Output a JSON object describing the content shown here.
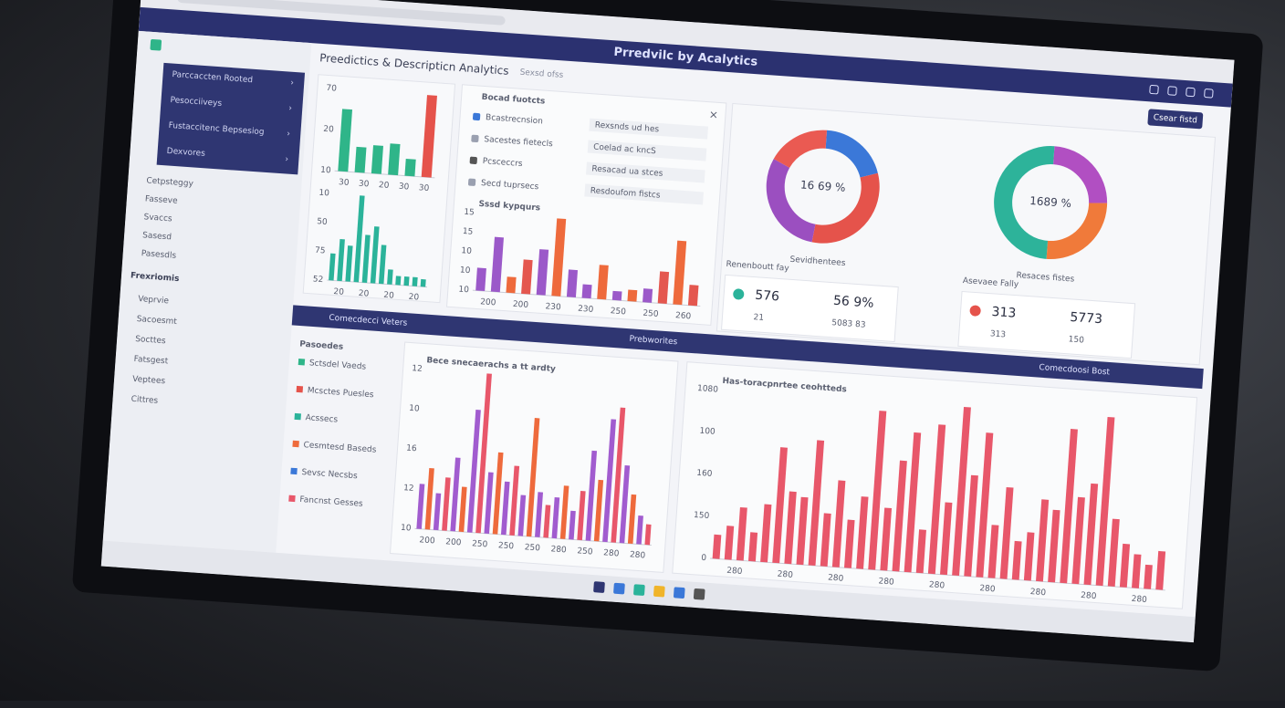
{
  "window": {
    "title": "Prredvilc by Acalytics",
    "header": "Preedictics & Descripticn Analytics",
    "tab": "Sexsd ofss",
    "button": "Csear fistd"
  },
  "sidebar": {
    "menu": [
      "Parccaccten Rooted",
      "Pesocciiveys",
      "Fustaccitenc Bepsesiog",
      "Dexvores"
    ],
    "items": [
      "Cetpsteggy",
      "Fasseve",
      "Svaccs",
      "Sasesd",
      "Pasesdls"
    ],
    "section": "Frexriomis",
    "items2": [
      "Veprvie",
      "Sacoesmt",
      "Socttes",
      "Fatsgest",
      "Veptees",
      "Cittres"
    ]
  },
  "list_panel": {
    "title": "Bocad fuotcts",
    "rows": [
      [
        "Bcastrecnsion",
        "Rexsnds ud hes"
      ],
      [
        "Sacestes fietecls",
        "Coelad ac kncS"
      ],
      [
        "Pcsceccrs",
        "Resacad ua stces"
      ],
      [
        "Secd tuprsecs",
        "Resdoufom fistcs"
      ]
    ]
  },
  "donuts": [
    {
      "label": "16 69 %",
      "caption": "Sevidhentees",
      "values": [
        20,
        32,
        30,
        18
      ],
      "colors": [
        "#3b78d8",
        "#e5534b",
        "#9b4fc0",
        "#ea5a52"
      ]
    },
    {
      "label": "1689 %",
      "caption": "Resaces fistes",
      "values": [
        24,
        26,
        50
      ],
      "colors": [
        "#b14fc2",
        "#f07a3a",
        "#2db39a"
      ]
    }
  ],
  "kpi": [
    {
      "title": "Renenboutt fay",
      "a": "576",
      "b": "56 9%",
      "c": "21",
      "d": "5083 83"
    },
    {
      "title": "Asevaee Fally",
      "a": "313",
      "b": "5773",
      "c": "313",
      "d": "150"
    }
  ],
  "bands": [
    "Comecdecci Veters",
    "Prebworites",
    "Comecdoosi Bost"
  ],
  "bottom_list": {
    "title": "Pasoedes",
    "items": [
      "Sctsdel Vaeds",
      "Mcsctes Puesles",
      "Acssecs",
      "Cesmtesd Baseds",
      "Sevsc Necsbs",
      "Fancnst Gesses"
    ]
  },
  "charts": [
    {
      "values": [
        44,
        18,
        20,
        22,
        12,
        58
      ],
      "colors": [
        "#2fb589",
        "#2fb589",
        "#2fb589",
        "#2fb589",
        "#2fb589",
        "#e5534b"
      ],
      "y_labels": [
        "70",
        "20",
        "10"
      ],
      "x_labels": [
        "30",
        "30",
        "20",
        "30",
        "30"
      ]
    },
    {
      "values": [
        18,
        28,
        24,
        58,
        32,
        38,
        26,
        10,
        6,
        6,
        6,
        5
      ],
      "colors": [
        "#2bb39a",
        "#2bb39a",
        "#2bb39a",
        "#2bb39a",
        "#2bb39a",
        "#2bb39a",
        "#2bb39a",
        "#2bb39a",
        "#2bb39a",
        "#2bb39a",
        "#2bb39a",
        "#2bb39a"
      ],
      "y_labels": [
        "10",
        "50",
        "75",
        "52"
      ],
      "x_labels": [
        "20",
        "20",
        "20",
        "20"
      ]
    },
    {
      "title": "Sssd kypqurs",
      "values": [
        20,
        48,
        14,
        30,
        40,
        68,
        24,
        12,
        30,
        8,
        10,
        12,
        28,
        56,
        18
      ],
      "colors": [
        "#9b59c9",
        "#9b59c9",
        "#ee6a3c",
        "#e4574f",
        "#9b59c9",
        "#ee6a3c",
        "#9b59c9",
        "#9b59c9",
        "#ee6a3c",
        "#9b59c9",
        "#ee6a3c",
        "#9b59c9",
        "#e4574f",
        "#ee6a3c",
        "#e4574f"
      ],
      "y_labels": [
        "15",
        "15",
        "10",
        "10",
        "10"
      ],
      "x_labels": [
        "200",
        "200",
        "230",
        "230",
        "250",
        "250",
        "260"
      ]
    },
    {
      "title": "Bece snecaerachs a tt ardty",
      "values": [
        22,
        30,
        18,
        26,
        36,
        22,
        60,
        78,
        30,
        40,
        26,
        34,
        20,
        58,
        22,
        16,
        20,
        26,
        14,
        24,
        44,
        30,
        60,
        66,
        38,
        24,
        14,
        10
      ],
      "colors": [
        "#a15ccf",
        "#ee6a3c",
        "#a15ccf",
        "#e8576a",
        "#a15ccf",
        "#ee6a3c",
        "#a15ccf",
        "#e8576a",
        "#a15ccf",
        "#ee6a3c",
        "#a15ccf",
        "#e8576a",
        "#a15ccf",
        "#ee6a3c",
        "#a15ccf",
        "#e8576a",
        "#a15ccf",
        "#ee6a3c",
        "#a15ccf",
        "#e8576a",
        "#a15ccf",
        "#ee6a3c",
        "#a15ccf",
        "#e8576a",
        "#a15ccf",
        "#ee6a3c",
        "#a15ccf",
        "#e8576a"
      ],
      "y_labels": [
        "12",
        "10",
        "16",
        "12",
        "10"
      ],
      "x_labels": [
        "200",
        "200",
        "250",
        "250",
        "250",
        "280",
        "250",
        "280",
        "280"
      ]
    },
    {
      "title": "Has-toracpnrtee ceohtteds",
      "values": [
        10,
        14,
        22,
        12,
        24,
        48,
        30,
        28,
        52,
        22,
        36,
        20,
        30,
        66,
        26,
        46,
        58,
        18,
        62,
        30,
        70,
        42,
        60,
        22,
        38,
        16,
        20,
        34,
        30,
        64,
        36,
        42,
        70,
        28,
        18,
        14,
        10,
        16
      ],
      "colors": [
        "#e8576a",
        "#e8576a",
        "#e8576a",
        "#e8576a",
        "#e8576a",
        "#e8576a",
        "#e8576a",
        "#e8576a",
        "#e8576a",
        "#e8576a",
        "#e8576a",
        "#e8576a",
        "#e8576a",
        "#e8576a",
        "#e8576a",
        "#e8576a",
        "#e8576a",
        "#e8576a",
        "#e8576a",
        "#e8576a",
        "#e8576a",
        "#e8576a",
        "#e8576a",
        "#e8576a",
        "#e8576a",
        "#e8576a",
        "#e8576a",
        "#e8576a",
        "#e8576a",
        "#e8576a",
        "#e8576a",
        "#e8576a",
        "#e8576a",
        "#e8576a",
        "#e8576a",
        "#e8576a",
        "#e8576a",
        "#e8576a"
      ],
      "y_labels": [
        "1080",
        "100",
        "160",
        "150",
        "0"
      ],
      "x_labels": [
        "280",
        "280",
        "280",
        "280",
        "280",
        "280",
        "280",
        "280",
        "280"
      ]
    }
  ]
}
